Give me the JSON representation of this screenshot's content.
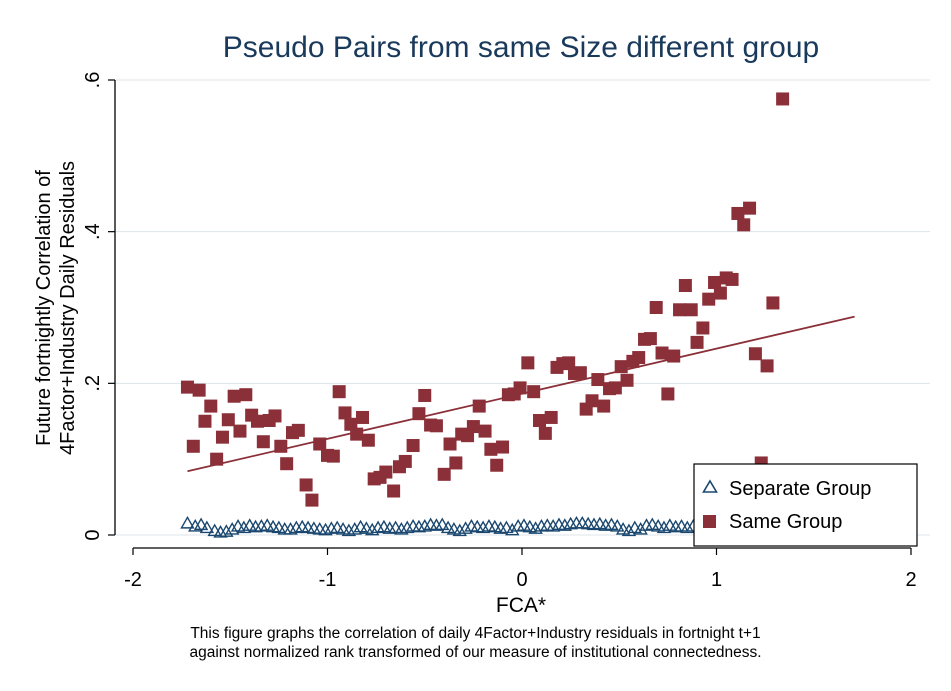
{
  "chart_data": {
    "type": "scatter",
    "title": "Pseudo Pairs from same Size different group",
    "xlabel": "FCA*",
    "ylabel_lines": [
      "Future fortnightly Correlation of",
      "4Factor+Industry Daily Residuals"
    ],
    "xlim": [
      -2,
      2
    ],
    "ylim": [
      0,
      0.6
    ],
    "x_ticks": [
      -2,
      -1,
      0,
      1,
      2
    ],
    "x_tick_labels": [
      "-2",
      "-1",
      "0",
      "1",
      "2"
    ],
    "y_ticks": [
      0,
      0.2,
      0.4,
      0.6
    ],
    "y_tick_labels": [
      "0",
      ".2",
      ".4",
      ".6"
    ],
    "grid": "horizontal",
    "legend_position": "bottom-right",
    "colors": {
      "same": "#8b3039",
      "separate": "#1a476f",
      "fit": "#8b3039",
      "grid": "#dde4ea",
      "title": "#1a3a5c"
    },
    "series": [
      {
        "name": "Separate Group",
        "marker": "triangle",
        "points": [
          [
            -1.72,
            0.016
          ],
          [
            -1.68,
            0.012
          ],
          [
            -1.65,
            0.014
          ],
          [
            -1.62,
            0.01
          ],
          [
            -1.58,
            0.006
          ],
          [
            -1.55,
            0.004
          ],
          [
            -1.52,
            0.005
          ],
          [
            -1.49,
            0.008
          ],
          [
            -1.46,
            0.012
          ],
          [
            -1.43,
            0.01
          ],
          [
            -1.4,
            0.013
          ],
          [
            -1.37,
            0.011
          ],
          [
            -1.34,
            0.012
          ],
          [
            -1.31,
            0.013
          ],
          [
            -1.28,
            0.011
          ],
          [
            -1.25,
            0.01
          ],
          [
            -1.22,
            0.008
          ],
          [
            -1.19,
            0.008
          ],
          [
            -1.16,
            0.01
          ],
          [
            -1.13,
            0.011
          ],
          [
            -1.1,
            0.01
          ],
          [
            -1.07,
            0.009
          ],
          [
            -1.04,
            0.008
          ],
          [
            -1.01,
            0.007
          ],
          [
            -0.98,
            0.009
          ],
          [
            -0.95,
            0.01
          ],
          [
            -0.92,
            0.008
          ],
          [
            -0.89,
            0.006
          ],
          [
            -0.86,
            0.008
          ],
          [
            -0.83,
            0.011
          ],
          [
            -0.8,
            0.009
          ],
          [
            -0.77,
            0.007
          ],
          [
            -0.74,
            0.01
          ],
          [
            -0.71,
            0.011
          ],
          [
            -0.68,
            0.009
          ],
          [
            -0.65,
            0.01
          ],
          [
            -0.62,
            0.008
          ],
          [
            -0.59,
            0.01
          ],
          [
            -0.56,
            0.012
          ],
          [
            -0.53,
            0.011
          ],
          [
            -0.5,
            0.012
          ],
          [
            -0.47,
            0.014
          ],
          [
            -0.44,
            0.013
          ],
          [
            -0.41,
            0.014
          ],
          [
            -0.38,
            0.01
          ],
          [
            -0.35,
            0.008
          ],
          [
            -0.32,
            0.006
          ],
          [
            -0.29,
            0.009
          ],
          [
            -0.26,
            0.012
          ],
          [
            -0.23,
            0.011
          ],
          [
            -0.2,
            0.01
          ],
          [
            -0.17,
            0.012
          ],
          [
            -0.14,
            0.011
          ],
          [
            -0.11,
            0.009
          ],
          [
            -0.08,
            0.01
          ],
          [
            -0.05,
            0.007
          ],
          [
            -0.02,
            0.012
          ],
          [
            0.01,
            0.013
          ],
          [
            0.04,
            0.011
          ],
          [
            0.07,
            0.009
          ],
          [
            0.1,
            0.012
          ],
          [
            0.13,
            0.013
          ],
          [
            0.16,
            0.012
          ],
          [
            0.19,
            0.014
          ],
          [
            0.22,
            0.013
          ],
          [
            0.25,
            0.015
          ],
          [
            0.28,
            0.016
          ],
          [
            0.31,
            0.016
          ],
          [
            0.34,
            0.015
          ],
          [
            0.37,
            0.014
          ],
          [
            0.4,
            0.015
          ],
          [
            0.43,
            0.013
          ],
          [
            0.46,
            0.014
          ],
          [
            0.49,
            0.012
          ],
          [
            0.52,
            0.008
          ],
          [
            0.55,
            0.006
          ],
          [
            0.58,
            0.01
          ],
          [
            0.61,
            0.008
          ],
          [
            0.64,
            0.013
          ],
          [
            0.67,
            0.014
          ],
          [
            0.7,
            0.012
          ],
          [
            0.73,
            0.01
          ],
          [
            0.76,
            0.013
          ],
          [
            0.79,
            0.011
          ],
          [
            0.82,
            0.012
          ],
          [
            0.85,
            0.01
          ],
          [
            0.88,
            0.012
          ]
        ]
      },
      {
        "name": "Same Group",
        "marker": "square",
        "points": [
          [
            -1.72,
            0.195
          ],
          [
            -1.69,
            0.117
          ],
          [
            -1.66,
            0.191
          ],
          [
            -1.63,
            0.15
          ],
          [
            -1.6,
            0.17
          ],
          [
            -1.57,
            0.1
          ],
          [
            -1.54,
            0.129
          ],
          [
            -1.51,
            0.152
          ],
          [
            -1.48,
            0.183
          ],
          [
            -1.45,
            0.137
          ],
          [
            -1.42,
            0.185
          ],
          [
            -1.39,
            0.158
          ],
          [
            -1.36,
            0.15
          ],
          [
            -1.33,
            0.123
          ],
          [
            -1.3,
            0.151
          ],
          [
            -1.27,
            0.157
          ],
          [
            -1.24,
            0.117
          ],
          [
            -1.21,
            0.094
          ],
          [
            -1.18,
            0.135
          ],
          [
            -1.15,
            0.138
          ],
          [
            -1.11,
            0.066
          ],
          [
            -1.08,
            0.046
          ],
          [
            -1.04,
            0.12
          ],
          [
            -1.0,
            0.105
          ],
          [
            -0.97,
            0.104
          ],
          [
            -0.94,
            0.189
          ],
          [
            -0.91,
            0.161
          ],
          [
            -0.88,
            0.146
          ],
          [
            -0.85,
            0.133
          ],
          [
            -0.82,
            0.155
          ],
          [
            -0.79,
            0.125
          ],
          [
            -0.76,
            0.074
          ],
          [
            -0.73,
            0.076
          ],
          [
            -0.7,
            0.083
          ],
          [
            -0.66,
            0.058
          ],
          [
            -0.63,
            0.09
          ],
          [
            -0.6,
            0.097
          ],
          [
            -0.56,
            0.118
          ],
          [
            -0.53,
            0.16
          ],
          [
            -0.5,
            0.184
          ],
          [
            -0.47,
            0.145
          ],
          [
            -0.44,
            0.144
          ],
          [
            -0.4,
            0.08
          ],
          [
            -0.37,
            0.12
          ],
          [
            -0.34,
            0.095
          ],
          [
            -0.31,
            0.133
          ],
          [
            -0.28,
            0.131
          ],
          [
            -0.25,
            0.143
          ],
          [
            -0.22,
            0.17
          ],
          [
            -0.19,
            0.137
          ],
          [
            -0.16,
            0.113
          ],
          [
            -0.13,
            0.092
          ],
          [
            -0.1,
            0.116
          ],
          [
            -0.07,
            0.185
          ],
          [
            -0.04,
            0.186
          ],
          [
            -0.01,
            0.194
          ],
          [
            0.03,
            0.227
          ],
          [
            0.06,
            0.189
          ],
          [
            0.09,
            0.151
          ],
          [
            0.12,
            0.134
          ],
          [
            0.15,
            0.155
          ],
          [
            0.18,
            0.221
          ],
          [
            0.21,
            0.226
          ],
          [
            0.24,
            0.227
          ],
          [
            0.27,
            0.213
          ],
          [
            0.3,
            0.214
          ],
          [
            0.33,
            0.166
          ],
          [
            0.36,
            0.177
          ],
          [
            0.39,
            0.205
          ],
          [
            0.42,
            0.17
          ],
          [
            0.45,
            0.193
          ],
          [
            0.48,
            0.194
          ],
          [
            0.51,
            0.222
          ],
          [
            0.54,
            0.204
          ],
          [
            0.57,
            0.229
          ],
          [
            0.6,
            0.234
          ],
          [
            0.63,
            0.258
          ],
          [
            0.66,
            0.259
          ],
          [
            0.69,
            0.3
          ],
          [
            0.72,
            0.24
          ],
          [
            0.75,
            0.186
          ],
          [
            0.78,
            0.236
          ],
          [
            0.81,
            0.297
          ],
          [
            0.84,
            0.329
          ],
          [
            0.87,
            0.297
          ],
          [
            0.9,
            0.254
          ],
          [
            0.93,
            0.273
          ],
          [
            0.96,
            0.311
          ],
          [
            0.99,
            0.333
          ],
          [
            1.02,
            0.319
          ],
          [
            1.05,
            0.339
          ],
          [
            1.08,
            0.337
          ],
          [
            1.11,
            0.424
          ],
          [
            1.14,
            0.409
          ],
          [
            1.17,
            0.431
          ],
          [
            1.2,
            0.239
          ],
          [
            1.23,
            0.095
          ],
          [
            1.26,
            0.223
          ],
          [
            1.29,
            0.306
          ],
          [
            1.34,
            0.575
          ]
        ]
      }
    ],
    "fit_line": {
      "x": [
        -1.72,
        1.71
      ],
      "y": [
        0.084,
        0.288
      ]
    }
  },
  "caption": {
    "line1": "This figure graphs the correlation of daily 4Factor+Industry residuals in fortnight t+1",
    "line2": "against normalized rank transformed of our measure of institutional connectedness."
  }
}
